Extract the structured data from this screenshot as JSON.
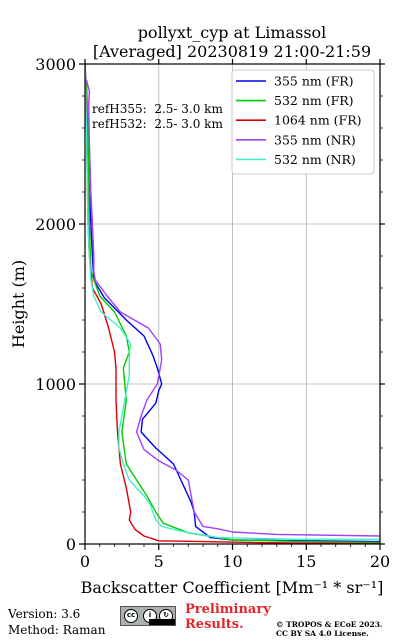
{
  "chart_data": {
    "type": "line",
    "title_line1": "pollyxt_cyp at Limassol",
    "title_line2": "[Averaged] 20230819 21:00-21:59",
    "xlabel": "Backscatter Coefficient [Mm⁻¹ * sr⁻¹]",
    "ylabel": "Height (m)",
    "xlim": [
      0,
      20
    ],
    "ylim": [
      0,
      3000
    ],
    "x_ticks": [
      "0",
      "5",
      "10",
      "15",
      "20"
    ],
    "y_ticks": [
      "0",
      "1000",
      "2000",
      "3000"
    ],
    "grid": true,
    "legend_position": "top-right",
    "annotations": [
      "refH355:  2.5- 3.0 km",
      "refH532:  2.5- 3.0 km"
    ],
    "series": [
      {
        "name": "355 nm (FR)",
        "color": "#0000ee",
        "points": [
          [
            20,
            15
          ],
          [
            15,
            20
          ],
          [
            10,
            25
          ],
          [
            8.5,
            40
          ],
          [
            7.5,
            110
          ],
          [
            7.4,
            200
          ],
          [
            7.2,
            260
          ],
          [
            6.5,
            400
          ],
          [
            6,
            500
          ],
          [
            4.8,
            600
          ],
          [
            3.8,
            700
          ],
          [
            3.9,
            780
          ],
          [
            4.8,
            880
          ],
          [
            5,
            960
          ],
          [
            5.2,
            1000
          ],
          [
            4.9,
            1100
          ],
          [
            4.6,
            1180
          ],
          [
            4,
            1300
          ],
          [
            2.8,
            1400
          ],
          [
            1.3,
            1540
          ],
          [
            0.6,
            1650
          ],
          [
            0.5,
            1800
          ],
          [
            0.4,
            2000
          ],
          [
            0.3,
            2200
          ],
          [
            0.2,
            2500
          ],
          [
            0.1,
            2800
          ],
          [
            0,
            3000
          ]
        ]
      },
      {
        "name": "532 nm (FR)",
        "color": "#00cc00",
        "points": [
          [
            20,
            10
          ],
          [
            15,
            15
          ],
          [
            10,
            25
          ],
          [
            7,
            70
          ],
          [
            5.3,
            130
          ],
          [
            4.8,
            200
          ],
          [
            4.2,
            300
          ],
          [
            3.5,
            400
          ],
          [
            2.8,
            500
          ],
          [
            2.5,
            700
          ],
          [
            2.8,
            900
          ],
          [
            2.6,
            1100
          ],
          [
            3,
            1200
          ],
          [
            2.8,
            1300
          ],
          [
            2,
            1450
          ],
          [
            1,
            1550
          ],
          [
            0.4,
            1700
          ],
          [
            0.3,
            2000
          ],
          [
            0.25,
            2300
          ],
          [
            0.2,
            2600
          ],
          [
            0.1,
            2900
          ]
        ]
      },
      {
        "name": "1064 nm (FR)",
        "color": "#dd0000",
        "points": [
          [
            20,
            2
          ],
          [
            12,
            8
          ],
          [
            8,
            15
          ],
          [
            5,
            20
          ],
          [
            4,
            50
          ],
          [
            3.4,
            90
          ],
          [
            3,
            150
          ],
          [
            3.1,
            200
          ],
          [
            2.8,
            350
          ],
          [
            2.4,
            500
          ],
          [
            2.2,
            700
          ],
          [
            2.1,
            900
          ],
          [
            2.1,
            1100
          ],
          [
            2,
            1200
          ],
          [
            1.6,
            1350
          ],
          [
            1.1,
            1500
          ],
          [
            0.5,
            1600
          ],
          [
            0.3,
            1800
          ],
          [
            0.2,
            2000
          ],
          [
            0.15,
            2300
          ],
          [
            0.1,
            2700
          ],
          [
            0,
            3000
          ]
        ]
      },
      {
        "name": "355 nm (NR)",
        "color": "#a040ff",
        "points": [
          [
            20,
            50
          ],
          [
            13,
            60
          ],
          [
            10,
            75
          ],
          [
            9,
            95
          ],
          [
            8,
            110
          ],
          [
            7.4,
            200
          ],
          [
            7.2,
            300
          ],
          [
            7,
            400
          ],
          [
            6.2,
            460
          ],
          [
            5,
            520
          ],
          [
            4,
            590
          ],
          [
            3.5,
            700
          ],
          [
            3.8,
            800
          ],
          [
            4.2,
            900
          ],
          [
            4.9,
            1000
          ],
          [
            5.2,
            1150
          ],
          [
            5.1,
            1250
          ],
          [
            4.3,
            1350
          ],
          [
            2.4,
            1450
          ],
          [
            1.5,
            1550
          ],
          [
            0.7,
            1650
          ],
          [
            0.6,
            1700
          ],
          [
            0.6,
            1800
          ],
          [
            0.5,
            2000
          ],
          [
            0.4,
            2200
          ],
          [
            0.3,
            2500
          ],
          [
            0.25,
            2750
          ],
          [
            0.3,
            2830
          ],
          [
            0.1,
            2900
          ]
        ]
      },
      {
        "name": "532 nm (NR)",
        "color": "#44eecc",
        "points": [
          [
            20,
            30
          ],
          [
            14,
            30
          ],
          [
            9,
            40
          ],
          [
            6.5,
            80
          ],
          [
            5.2,
            110
          ],
          [
            4.8,
            150
          ],
          [
            4.4,
            250
          ],
          [
            4,
            300
          ],
          [
            3,
            400
          ],
          [
            2.6,
            500
          ],
          [
            2.3,
            600
          ],
          [
            2.3,
            700
          ],
          [
            2.7,
            900
          ],
          [
            3,
            1050
          ],
          [
            3,
            1200
          ],
          [
            3.1,
            1250
          ],
          [
            2.4,
            1350
          ],
          [
            1.1,
            1450
          ],
          [
            0.6,
            1550
          ],
          [
            0.4,
            1650
          ],
          [
            0.3,
            1800
          ],
          [
            0.2,
            2000
          ],
          [
            0.15,
            2300
          ],
          [
            0.1,
            2600
          ],
          [
            0,
            3000
          ]
        ]
      }
    ]
  },
  "footer": {
    "version": "Version: 3.6",
    "method": "Method: Raman",
    "cc_label": "BY SA",
    "prelim_line1": "Preliminary",
    "prelim_line2": "Results.",
    "copyright_line1": "© TROPOS & ECoE 2023.",
    "copyright_line2": "CC BY SA 4.0 License."
  }
}
